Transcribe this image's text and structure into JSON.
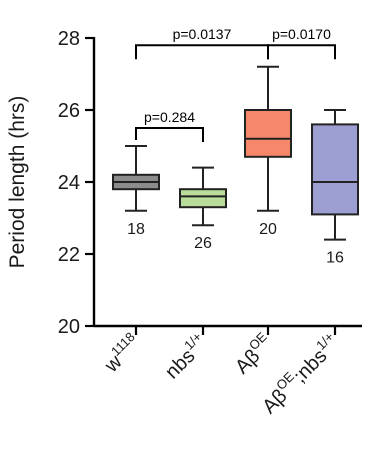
{
  "chart_data": {
    "type": "box",
    "ylabel": "Period length (hrs)",
    "ylim": [
      20,
      28
    ],
    "yticks": [
      20,
      22,
      24,
      26,
      28
    ],
    "categories": [
      {
        "base": "w",
        "sup": "1118"
      },
      {
        "base": "nbs",
        "sup": "1/+"
      },
      {
        "base": "Aβ",
        "sup": "OE"
      },
      {
        "base": "Aβ",
        "sup": "OE",
        "tail": ";nbs",
        "sup2": "1/+"
      }
    ],
    "boxes": [
      {
        "min": 23.2,
        "q1": 23.8,
        "median": 24.0,
        "q3": 24.2,
        "max": 25.0,
        "n": "18",
        "color": "#8c8c8c"
      },
      {
        "min": 22.8,
        "q1": 23.3,
        "median": 23.6,
        "q3": 23.8,
        "max": 24.4,
        "n": "26",
        "color": "#b9dc9a"
      },
      {
        "min": 23.2,
        "q1": 24.7,
        "median": 25.2,
        "q3": 26.0,
        "max": 27.2,
        "n": "20",
        "color": "#f5876a"
      },
      {
        "min": 22.4,
        "q1": 23.1,
        "median": 24.0,
        "q3": 25.6,
        "max": 26.0,
        "n": "16",
        "color": "#9d9fd2"
      }
    ],
    "comparisons": [
      {
        "from": 0,
        "to": 1,
        "p": "p=0.284",
        "y": 25.5
      },
      {
        "from": 0,
        "to": 2,
        "p": "p=0.0137",
        "y": 27.8
      },
      {
        "from": 2,
        "to": 3,
        "p": "p=0.0170",
        "y": 27.8
      }
    ]
  }
}
